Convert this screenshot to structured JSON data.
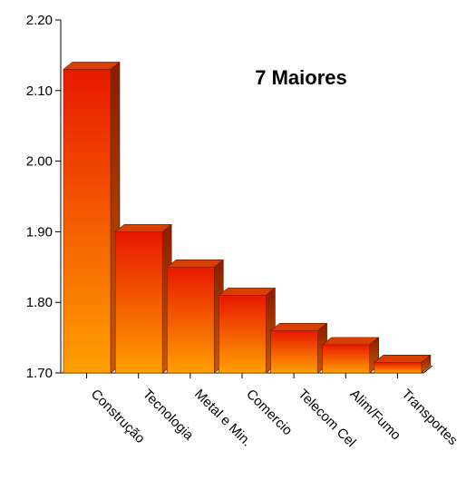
{
  "chart_data": {
    "type": "bar",
    "title": "7 Maiores",
    "xlabel": "",
    "ylabel": "",
    "categories": [
      "Construção",
      "Tecnologia",
      "Metal e Min.",
      "Comercio",
      "Telecom Cel",
      "Alim/Fumo",
      "Transportes"
    ],
    "values": [
      2.13,
      1.9,
      1.85,
      1.81,
      1.76,
      1.74,
      1.715
    ],
    "ylim": [
      1.7,
      2.2
    ],
    "yticks": [
      "1.70",
      "1.80",
      "1.90",
      "2.00",
      "2.10",
      "2.20"
    ],
    "grid": false,
    "legend": "none",
    "style": "3d",
    "colors": {
      "bar_top": "#e81800",
      "bar_bottom": "#ffa000",
      "bar_side_dark": "#7a2000",
      "bar_side_light": "#c84a00",
      "bar_cap": "#d84000",
      "axis": "#000000"
    }
  }
}
